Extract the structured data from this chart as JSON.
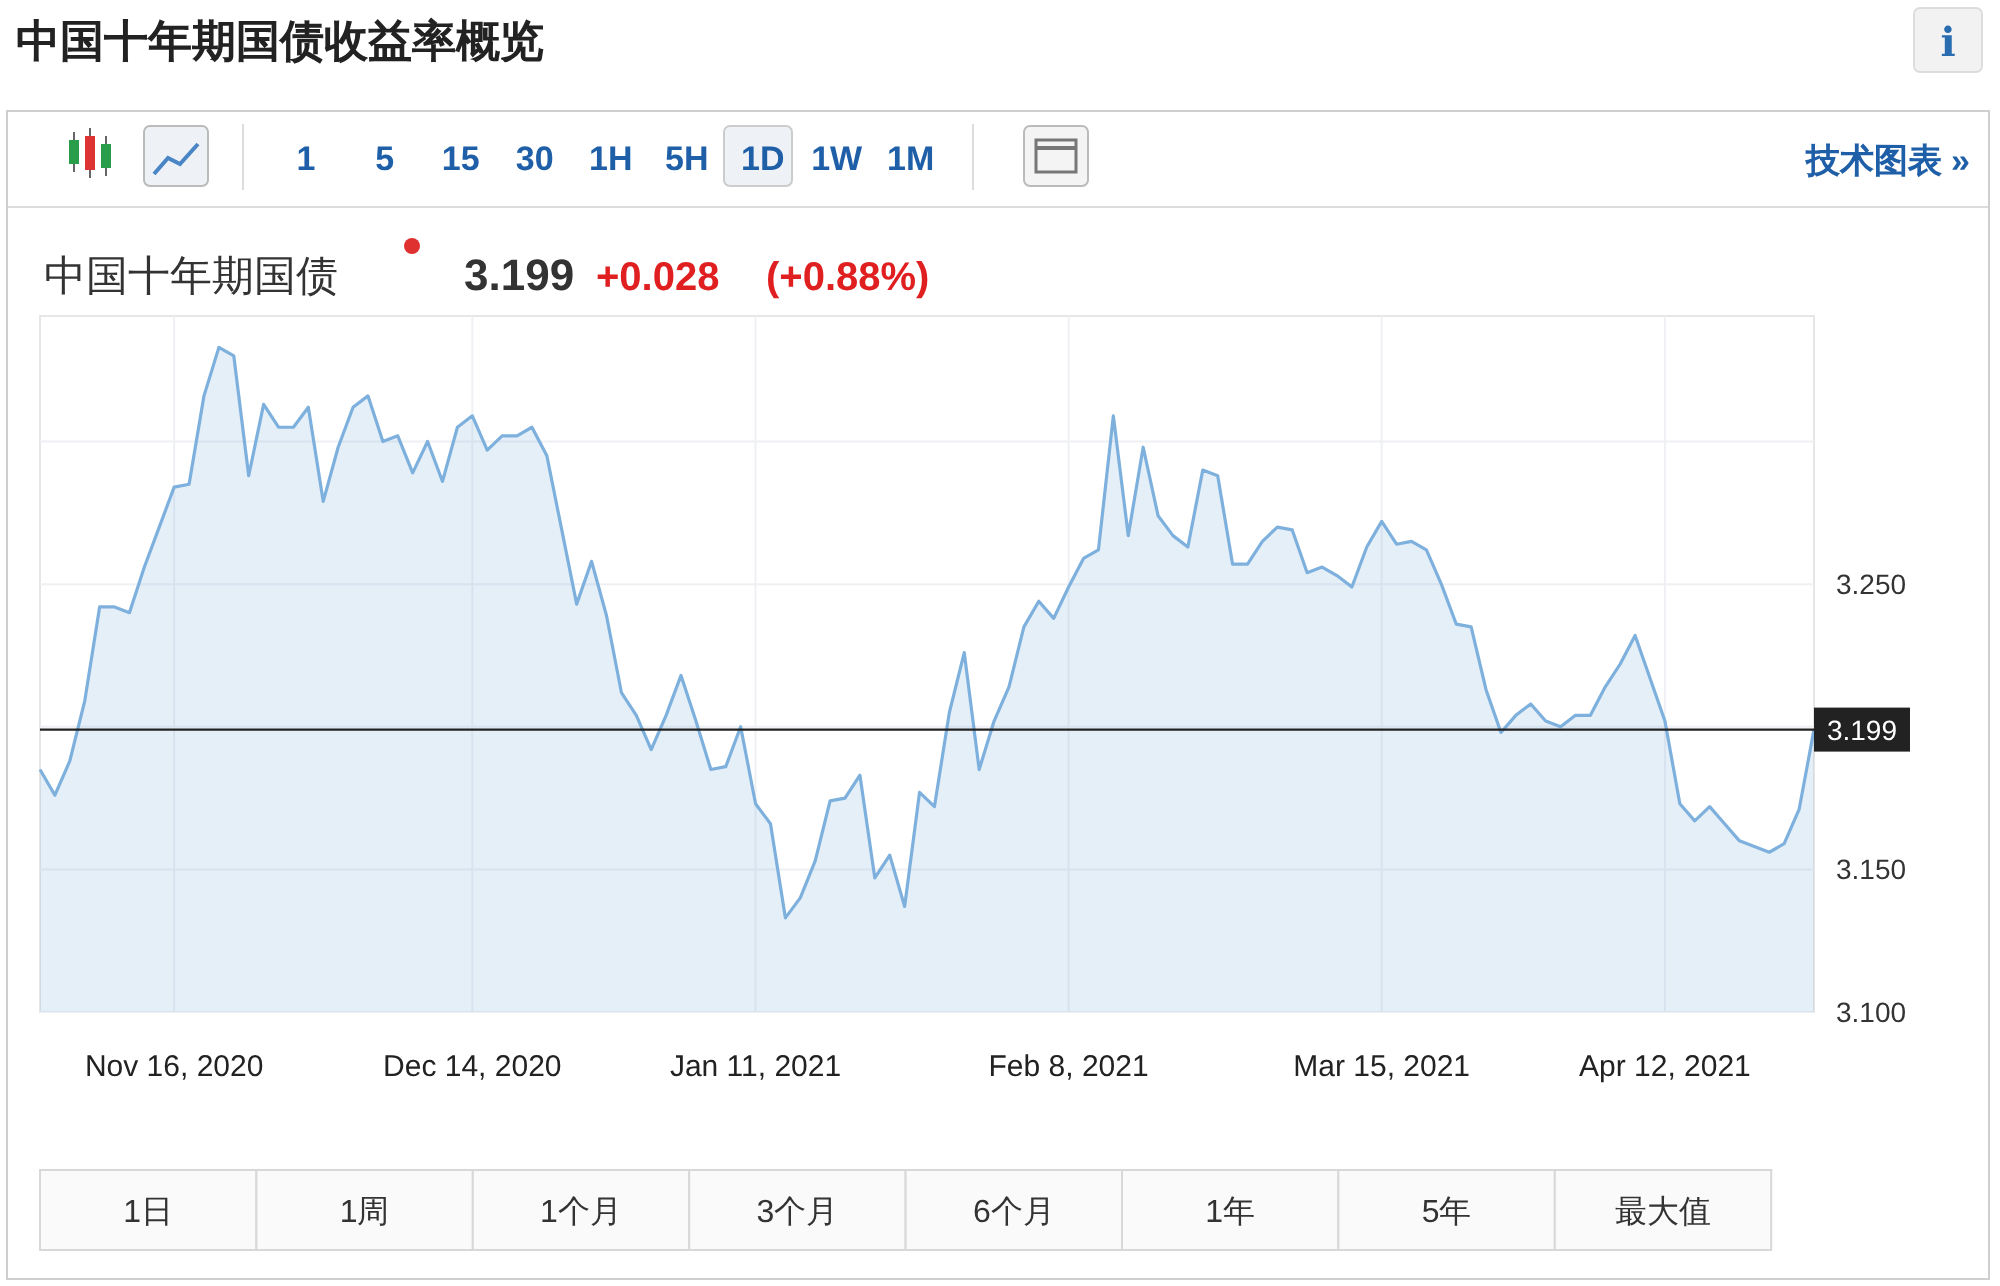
{
  "chart_data": {
    "type": "area",
    "title": "中国十年期国债收益率概览",
    "subtitle": "中国十年期国债",
    "annotations": [
      "3.199",
      "+0.028",
      "(+0.88%)",
      "1 5 15 30 1H 5H 1D 1W 1M",
      "技术图表 »",
      "1日",
      "1周",
      "1个月",
      "3个月",
      "6个月",
      "1年",
      "5年",
      "最大值",
      "i"
    ],
    "categories": [
      null,
      null,
      null,
      null,
      null,
      null,
      null,
      null,
      null,
      "Nov 16, 2020",
      null,
      null,
      null,
      null,
      null,
      null,
      null,
      null,
      null,
      null,
      null,
      null,
      null,
      null,
      null,
      null,
      null,
      null,
      null,
      "Dec 14, 2020",
      null,
      null,
      null,
      null,
      null,
      null,
      null,
      null,
      null,
      null,
      null,
      null,
      null,
      null,
      null,
      null,
      null,
      null,
      "Jan 11, 2021",
      null,
      null,
      null,
      null,
      null,
      null,
      null,
      null,
      null,
      null,
      null,
      null,
      null,
      null,
      null,
      null,
      null,
      null,
      null,
      null,
      "Feb 8, 2021",
      null,
      null,
      null,
      null,
      null,
      null,
      null,
      null,
      null,
      null,
      null,
      null,
      null,
      null,
      null,
      null,
      null,
      null,
      null,
      null,
      "Mar 15, 2021",
      null,
      null,
      null,
      null,
      null,
      null,
      null,
      null,
      null,
      null,
      null,
      null,
      null,
      null,
      null,
      null,
      null,
      null,
      "Apr 12, 2021",
      null,
      null,
      null,
      null,
      null,
      null,
      null,
      null,
      null,
      null
    ],
    "series": [
      {
        "color": "#7eb0dd",
        "values": [
          3.185,
          3.176,
          3.188,
          3.209,
          3.242,
          3.242,
          3.24,
          3.256,
          3.27,
          3.284,
          3.285,
          3.316,
          3.333,
          3.33,
          3.288,
          3.313,
          3.305,
          3.305,
          3.312,
          3.279,
          3.298,
          3.312,
          3.316,
          3.3,
          3.302,
          3.289,
          3.3,
          3.286,
          3.305,
          3.309,
          3.297,
          3.302,
          3.302,
          3.305,
          3.295,
          3.269,
          3.243,
          3.258,
          3.239,
          3.212,
          3.204,
          3.192,
          3.204,
          3.218,
          3.202,
          3.185,
          3.186,
          3.2,
          3.173,
          3.166,
          3.133,
          3.14,
          3.153,
          3.174,
          3.175,
          3.183,
          3.147,
          3.155,
          3.137,
          3.177,
          3.172,
          3.205,
          3.226,
          3.185,
          3.202,
          3.214,
          3.235,
          3.244,
          3.238,
          3.249,
          3.259,
          3.262,
          3.309,
          3.267,
          3.298,
          3.274,
          3.267,
          3.263,
          3.29,
          3.288,
          3.257,
          3.257,
          3.265,
          3.27,
          3.269,
          3.254,
          3.256,
          3.253,
          3.249,
          3.263,
          3.272,
          3.264,
          3.265,
          3.262,
          3.25,
          3.236,
          3.235,
          3.213,
          3.198,
          3.204,
          3.208,
          3.202,
          3.2,
          3.204,
          3.204,
          3.214,
          3.222,
          3.232,
          3.217,
          3.202,
          3.173,
          3.167,
          3.172,
          3.166,
          3.16,
          3.158,
          3.156,
          3.159,
          3.171,
          3.199
        ]
      }
    ],
    "ylim": [
      3.1,
      3.344
    ],
    "yticks": [
      {
        "value": 3.1,
        "label": "3.100"
      },
      {
        "value": 3.15,
        "label": "3.150"
      },
      {
        "value": 3.2,
        "label": null
      },
      {
        "value": 3.25,
        "label": "3.250"
      },
      {
        "value": 3.3,
        "label": null
      }
    ],
    "ref_lines": [
      {
        "axis": "y",
        "value": 3.199,
        "label": "3.199",
        "color": "#222222"
      }
    ],
    "grid": true
  }
}
